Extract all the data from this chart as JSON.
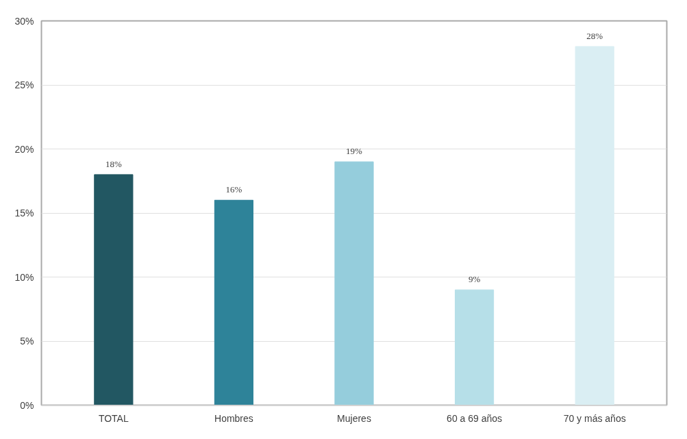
{
  "chart_data": {
    "type": "bar",
    "categories": [
      "TOTAL",
      "Hombres",
      "Mujeres",
      "60 a 69 años",
      "70 y más años"
    ],
    "values": [
      18,
      16,
      19,
      9,
      28
    ],
    "colors": [
      "#225762",
      "#2e8399",
      "#95cddc",
      "#b6dfe8",
      "#daeef3"
    ],
    "ylim": [
      0,
      30
    ],
    "yticks": [
      {
        "value": 0,
        "label": "0%"
      },
      {
        "value": 5,
        "label": "5%"
      },
      {
        "value": 10,
        "label": "10%"
      },
      {
        "value": 15,
        "label": "15%"
      },
      {
        "value": 20,
        "label": "20%"
      },
      {
        "value": 25,
        "label": "25%"
      },
      {
        "value": 30,
        "label": "30%"
      }
    ],
    "value_labels": [
      "18%",
      "16%",
      "19%",
      "9%",
      "28%"
    ],
    "grid": "y"
  }
}
